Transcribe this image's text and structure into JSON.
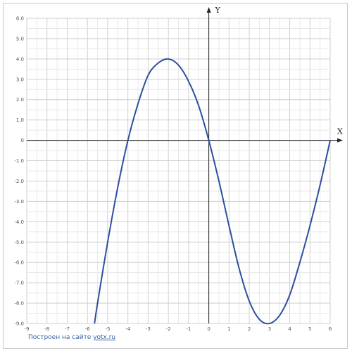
{
  "chart_data": {
    "type": "line",
    "title": "",
    "xlabel": "X",
    "ylabel": "Y",
    "xlim": [
      -9,
      6
    ],
    "ylim": [
      -9,
      6
    ],
    "grid": true,
    "x_ticks": [
      -9,
      -8,
      -7,
      -6,
      -5,
      -4,
      -3,
      -2,
      -1,
      0,
      1,
      2,
      3,
      4,
      5,
      6
    ],
    "x_tick_labels": [
      "-9",
      "-8",
      "-7",
      "-6",
      "-5",
      "-4",
      "-3",
      "-2",
      "-1",
      "0",
      "1",
      "2",
      "3",
      "4",
      "5",
      "6"
    ],
    "y_ticks": [
      6,
      5,
      4,
      3,
      2,
      1,
      0,
      -1,
      -2,
      -3,
      -4,
      -5,
      -6,
      -7,
      -8,
      -9
    ],
    "y_tick_labels": [
      "6.0",
      "5.0",
      "4.0",
      "3.0",
      "2.0",
      "1.0",
      "0",
      "-1.0",
      "-2.0",
      "-3.0",
      "-4.0",
      "-5.0",
      "-6.0",
      "-7.0",
      "-8.0",
      "-9.0"
    ],
    "series": [
      {
        "color": "#2e4fa0",
        "x": [
          -5.65,
          -5.5,
          -5.0,
          -4.5,
          -4.0,
          -3.5,
          -3.0,
          -2.5,
          -2.0,
          -1.5,
          -1.0,
          -0.5,
          0.0,
          0.5,
          1.0,
          1.5,
          2.0,
          2.5,
          3.0,
          3.5,
          4.0,
          4.5,
          5.0,
          5.5,
          6.0
        ],
        "y": [
          -9.0,
          -8.0,
          -5.0,
          -2.3,
          0.0,
          1.8,
          3.2,
          3.8,
          4.0,
          3.7,
          2.9,
          1.7,
          0.0,
          -2.0,
          -4.2,
          -6.3,
          -7.9,
          -8.8,
          -9.0,
          -8.6,
          -7.6,
          -6.0,
          -4.2,
          -2.2,
          0.0
        ]
      }
    ]
  },
  "credit": {
    "prefix": "Построен на сайте ",
    "link": "yotx.ru"
  }
}
